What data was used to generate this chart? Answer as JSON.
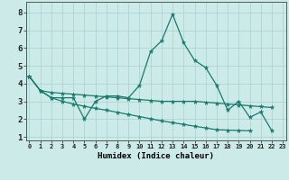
{
  "xlabel": "Humidex (Indice chaleur)",
  "background_color": "#cceae8",
  "grid_color": "#aed4d2",
  "line_color": "#1a7a6e",
  "x_ticks": [
    0,
    1,
    2,
    3,
    4,
    5,
    6,
    7,
    8,
    9,
    10,
    11,
    12,
    13,
    14,
    15,
    16,
    17,
    18,
    19,
    20,
    21,
    22,
    23
  ],
  "ylim": [
    0.8,
    8.6
  ],
  "xlim": [
    -0.3,
    23.3
  ],
  "yticks": [
    1,
    2,
    3,
    4,
    5,
    6,
    7,
    8
  ],
  "series": [
    {
      "x": [
        0,
        1,
        2,
        3,
        4,
        5,
        6,
        7,
        8,
        9,
        10,
        11,
        12,
        13,
        14,
        15,
        16,
        17,
        18,
        19,
        20,
        21,
        22
      ],
      "y": [
        4.4,
        3.6,
        3.2,
        3.2,
        3.2,
        2.0,
        3.0,
        3.3,
        3.3,
        3.2,
        3.9,
        5.8,
        6.4,
        7.9,
        6.3,
        5.3,
        4.9,
        3.9,
        2.5,
        3.0,
        2.1,
        2.4,
        1.35
      ]
    },
    {
      "x": [
        0,
        1,
        2,
        3,
        4,
        5,
        6,
        7,
        8,
        9,
        10,
        11,
        12,
        13,
        14,
        15,
        16,
        17,
        18,
        19,
        20,
        21,
        22
      ],
      "y": [
        4.4,
        3.6,
        3.5,
        3.45,
        3.4,
        3.35,
        3.3,
        3.25,
        3.2,
        3.15,
        3.1,
        3.05,
        3.0,
        3.0,
        3.0,
        3.0,
        2.95,
        2.9,
        2.85,
        2.8,
        2.75,
        2.7,
        2.65
      ]
    },
    {
      "x": [
        0,
        1,
        2,
        3,
        4,
        5,
        6,
        7,
        8,
        9,
        10,
        11,
        12,
        13,
        14,
        15,
        16,
        17,
        18,
        19,
        20
      ],
      "y": [
        4.4,
        3.6,
        3.2,
        3.0,
        2.85,
        2.72,
        2.6,
        2.5,
        2.38,
        2.26,
        2.14,
        2.02,
        1.9,
        1.8,
        1.7,
        1.6,
        1.5,
        1.4,
        1.38,
        1.36,
        1.34
      ]
    }
  ]
}
